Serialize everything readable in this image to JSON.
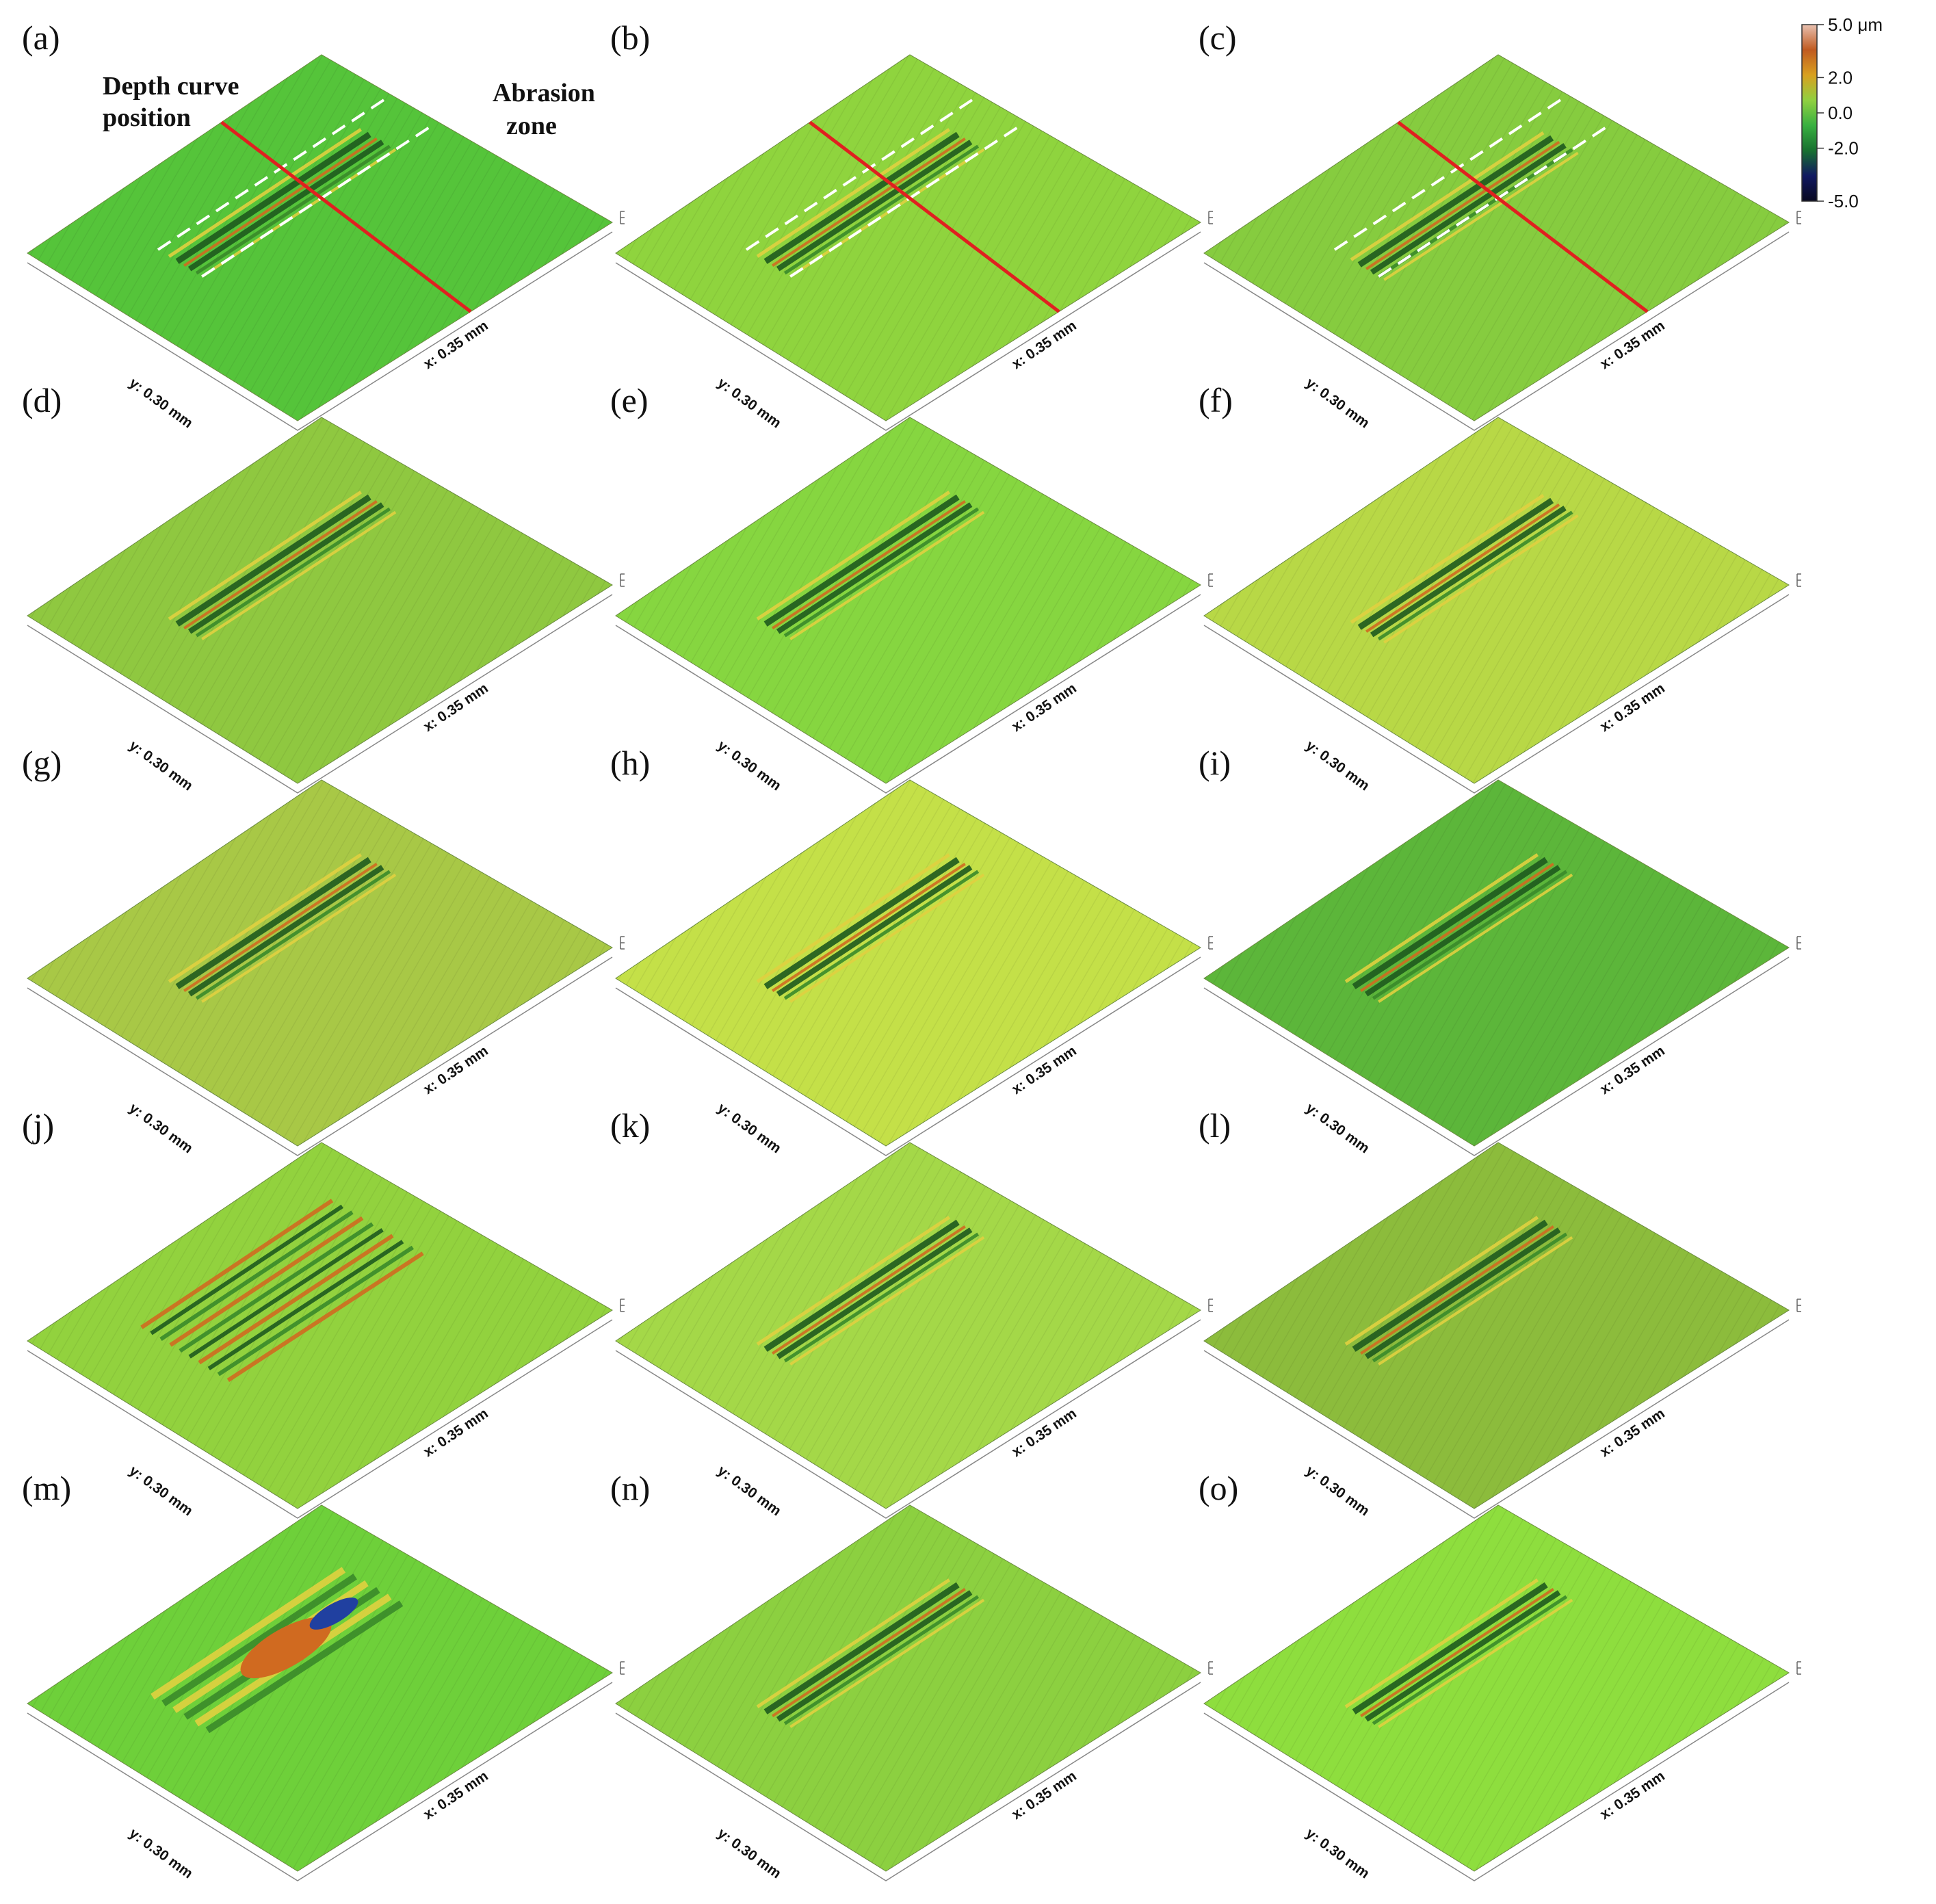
{
  "figure": {
    "panels": [
      {
        "label": "(a)",
        "style": "mixed",
        "tint": "#55c43a",
        "annotated": true
      },
      {
        "label": "(b)",
        "style": "single",
        "tint": "#8fd43e",
        "annotated": true
      },
      {
        "label": "(c)",
        "style": "rough",
        "tint": "#86cc3f",
        "annotated": true
      },
      {
        "label": "(d)",
        "style": "single",
        "tint": "#8fc840"
      },
      {
        "label": "(e)",
        "style": "single",
        "tint": "#86d640"
      },
      {
        "label": "(f)",
        "style": "rough",
        "tint": "#b8d846"
      },
      {
        "label": "(g)",
        "style": "single",
        "tint": "#a8c846"
      },
      {
        "label": "(h)",
        "style": "single",
        "tint": "#c4e048"
      },
      {
        "label": "(i)",
        "style": "single",
        "tint": "#5cb63a"
      },
      {
        "label": "(j)",
        "style": "wide",
        "tint": "#92d23e"
      },
      {
        "label": "(k)",
        "style": "single",
        "tint": "#a4d848"
      },
      {
        "label": "(l)",
        "style": "single",
        "tint": "#8cbc3c"
      },
      {
        "label": "(m)",
        "style": "damage",
        "tint": "#6ed03a"
      },
      {
        "label": "(n)",
        "style": "single",
        "tint": "#8cd040"
      },
      {
        "label": "(o)",
        "style": "single",
        "tint": "#8ede3e"
      }
    ],
    "axis_y_label": "y: 0.30 mm",
    "axis_x_label": "x: 0.35 mm",
    "annotations": {
      "depth_curve_line1": "Depth curve",
      "depth_curve_line2": "position",
      "abrasion_line1": "Abrasion",
      "abrasion_line2": "zone"
    },
    "colorbar": {
      "ticks": [
        "5.0 μm",
        "2.0",
        "0.0",
        "-2.0",
        "-5.0"
      ],
      "range": [
        -5.0,
        5.0
      ],
      "colors": [
        "#e8c0b0",
        "#c05a20",
        "#d8a020",
        "#90d040",
        "#38b040",
        "#187030",
        "#101860",
        "#080820"
      ]
    },
    "colors": {
      "groove_dark": "#1e5a1e",
      "groove_mid": "#3a8a2a",
      "ridge_orange": "#d06a20",
      "ridge_yellow": "#e0d040",
      "depth_line": "#e02020",
      "zone_line": "#ffffff"
    }
  }
}
